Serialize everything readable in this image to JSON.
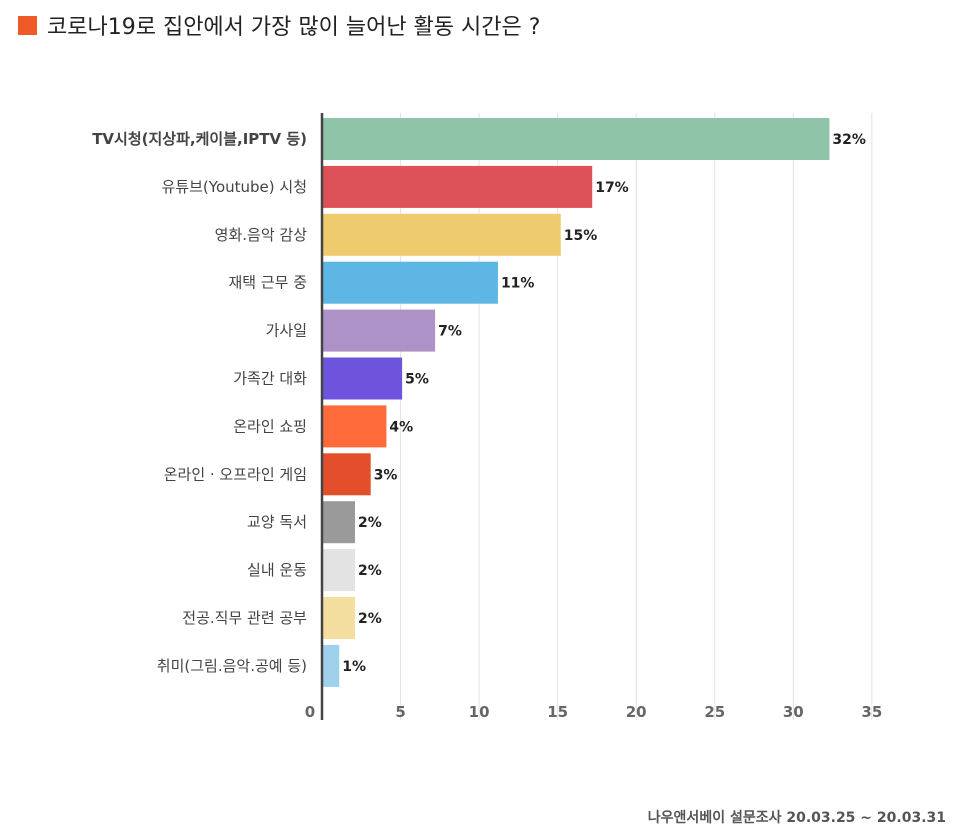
{
  "title": "코로나19로 집안에서 가장 많이 늘어난 활동 시간은 ?",
  "title_marker_color": "#F05A28",
  "source": "나우앤서베이 설문조사 20.03.25 ~ 20.03.31",
  "chart_data": {
    "type": "bar",
    "orientation": "horizontal",
    "title": "코로나19로 집안에서 가장 많이 늘어난 활동 시간은 ?",
    "xlabel": "",
    "ylabel": "",
    "xlim": [
      0,
      35
    ],
    "xticks": [
      0,
      5,
      10,
      15,
      20,
      25,
      30,
      35
    ],
    "grid": true,
    "unit": "%",
    "categories": [
      "TV시청(지상파,케이블,IPTV 등)",
      "유튜브(Youtube) 시청",
      "영화.음악 감상",
      "재택 근무 중",
      "가사일",
      "가족간 대화",
      "온라인 쇼핑",
      "온라인 · 오프라인 게임",
      "교양 독서",
      "실내 운동",
      "전공.직무 관련 공부",
      "취미(그림.음악.공예 등)"
    ],
    "values": [
      32.3,
      17.2,
      15.2,
      11.2,
      7.2,
      5.1,
      4.1,
      3.1,
      2.1,
      2.1,
      2.1,
      1.1
    ],
    "value_labels": [
      "32%",
      "17%",
      "15%",
      "11%",
      "7%",
      "5%",
      "4%",
      "3%",
      "2%",
      "2%",
      "2%",
      "1%"
    ],
    "colors": [
      "#8FC4A8",
      "#DC5258",
      "#EECB6C",
      "#5EB6E4",
      "#AD92C8",
      "#6E54DC",
      "#FF6A3B",
      "#E34F2A",
      "#9A9A9A",
      "#E3E3E3",
      "#F4DE9F",
      "#9FD0EC"
    ]
  }
}
